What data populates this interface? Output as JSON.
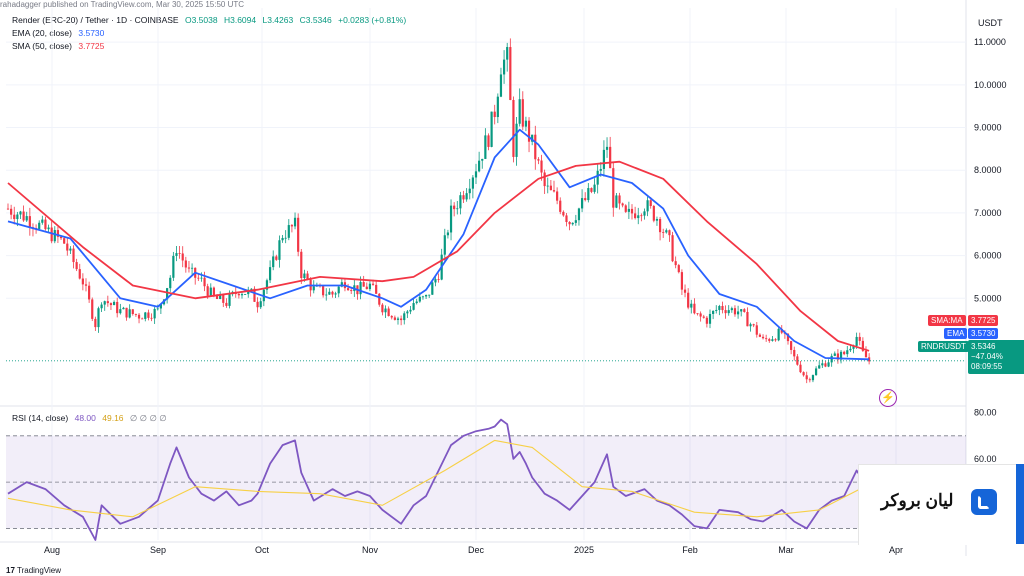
{
  "header": {
    "published": "rahadagger published on TradingView.com, Mar 30, 2025 15:50 UTC",
    "symbol_line": "Render (ERC-20) / Tether · 1D · COINBASE",
    "ohlc": {
      "o": "O3.5038",
      "h": "H3.6094",
      "l": "L3.4263",
      "c": "C3.5346",
      "chg": "+0.0283 (+0.81%)"
    },
    "ema_label": "EMA (20, close)",
    "ema_value": "3.5730",
    "sma_label": "SMA (50, close)",
    "sma_value": "3.7725",
    "currency": "USDT"
  },
  "price_tags": {
    "sma_name": "SMA:MA",
    "sma_value": "3.7725",
    "ema_name": "EMA",
    "ema_value": "3.5730",
    "symbol": "RNDRUSDT",
    "last": "3.5346",
    "change": "−47.04%",
    "countdown": "08:09:55"
  },
  "rsi": {
    "label": "RSI (14, close)",
    "value": "48.00",
    "ma_value": "49.16",
    "zeros": "∅ ∅ ∅ ∅"
  },
  "watermark": {
    "brand": "لیان بروکر"
  },
  "footer": {
    "tradingview": "TradingView"
  },
  "colors": {
    "up": "#089981",
    "down": "#f23645",
    "ema": "#2962ff",
    "sma": "#f23645",
    "rsi": "#7e57c2",
    "rsi_ma": "#f7d046"
  },
  "chart_data": [
    {
      "type": "candlestick",
      "title": "Render (ERC-20) / Tether · 1D · COINBASE",
      "y_axis_ticks": [
        5.0,
        6.0,
        7.0,
        8.0,
        9.0,
        10.0,
        11.0
      ],
      "y_tick_labels": [
        "5.0000",
        "6.0000",
        "7.0000",
        "8.0000",
        "9.0000",
        "10.0000",
        "11.0000"
      ],
      "ylim": [
        2.5,
        11.8
      ],
      "x_tick_labels": [
        "Aug",
        "Sep",
        "Oct",
        "Nov",
        "Dec",
        "2025",
        "Feb",
        "Mar",
        "Apr"
      ],
      "close_path": [
        [
          0,
          7.1
        ],
        [
          6,
          6.9
        ],
        [
          12,
          6.6
        ],
        [
          18,
          6.3
        ],
        [
          24,
          5.4
        ],
        [
          28,
          4.4
        ],
        [
          30,
          5.0
        ],
        [
          36,
          4.7
        ],
        [
          42,
          4.6
        ],
        [
          48,
          4.7
        ],
        [
          52,
          5.5
        ],
        [
          54,
          6.2
        ],
        [
          58,
          5.6
        ],
        [
          62,
          5.4
        ],
        [
          66,
          5.0
        ],
        [
          70,
          4.9
        ],
        [
          74,
          5.2
        ],
        [
          78,
          5.1
        ],
        [
          80,
          4.9
        ],
        [
          84,
          5.6
        ],
        [
          88,
          6.5
        ],
        [
          92,
          6.7
        ],
        [
          94,
          5.6
        ],
        [
          98,
          5.2
        ],
        [
          104,
          5.1
        ],
        [
          108,
          5.4
        ],
        [
          112,
          5.2
        ],
        [
          116,
          5.3
        ],
        [
          120,
          4.8
        ],
        [
          126,
          4.5
        ],
        [
          130,
          4.9
        ],
        [
          134,
          5.0
        ],
        [
          138,
          5.6
        ],
        [
          142,
          7.0
        ],
        [
          146,
          7.5
        ],
        [
          150,
          8.1
        ],
        [
          154,
          8.8
        ],
        [
          156,
          9.4
        ],
        [
          158,
          10.5
        ],
        [
          160,
          10.6
        ],
        [
          162,
          8.5
        ],
        [
          164,
          9.4
        ],
        [
          166,
          9.0
        ],
        [
          168,
          8.6
        ],
        [
          172,
          7.6
        ],
        [
          176,
          7.3
        ],
        [
          180,
          6.8
        ],
        [
          184,
          7.2
        ],
        [
          188,
          7.6
        ],
        [
          192,
          8.6
        ],
        [
          194,
          7.3
        ],
        [
          198,
          6.9
        ],
        [
          204,
          7.2
        ],
        [
          208,
          6.9
        ],
        [
          212,
          6.3
        ],
        [
          216,
          5.2
        ],
        [
          220,
          4.6
        ],
        [
          224,
          4.5
        ],
        [
          228,
          4.8
        ],
        [
          234,
          4.7
        ],
        [
          238,
          4.4
        ],
        [
          242,
          4.0
        ],
        [
          248,
          4.2
        ],
        [
          252,
          3.6
        ],
        [
          256,
          3.1
        ],
        [
          260,
          3.4
        ],
        [
          264,
          3.6
        ],
        [
          268,
          3.7
        ],
        [
          272,
          4.1
        ],
        [
          274,
          3.7
        ],
        [
          276,
          3.53
        ]
      ],
      "series": [
        {
          "name": "EMA (20, close)",
          "values": [
            [
              0,
              6.8
            ],
            [
              20,
              6.4
            ],
            [
              36,
              5.0
            ],
            [
              48,
              4.8
            ],
            [
              60,
              5.6
            ],
            [
              72,
              5.3
            ],
            [
              84,
              5.0
            ],
            [
              96,
              5.3
            ],
            [
              108,
              5.3
            ],
            [
              120,
              5.0
            ],
            [
              126,
              4.8
            ],
            [
              134,
              5.2
            ],
            [
              146,
              6.5
            ],
            [
              156,
              8.3
            ],
            [
              164,
              8.95
            ],
            [
              170,
              8.6
            ],
            [
              180,
              7.6
            ],
            [
              190,
              7.9
            ],
            [
              200,
              7.7
            ],
            [
              210,
              7.1
            ],
            [
              218,
              6.0
            ],
            [
              228,
              5.1
            ],
            [
              240,
              4.8
            ],
            [
              252,
              4.0
            ],
            [
              262,
              3.6
            ],
            [
              276,
              3.57
            ]
          ]
        },
        {
          "name": "SMA (50, close)",
          "values": [
            [
              0,
              7.7
            ],
            [
              24,
              6.2
            ],
            [
              40,
              5.3
            ],
            [
              60,
              5.0
            ],
            [
              80,
              5.2
            ],
            [
              100,
              5.5
            ],
            [
              120,
              5.4
            ],
            [
              130,
              5.5
            ],
            [
              144,
              6.1
            ],
            [
              156,
              7.0
            ],
            [
              170,
              7.8
            ],
            [
              182,
              8.1
            ],
            [
              196,
              8.2
            ],
            [
              210,
              7.8
            ],
            [
              224,
              6.8
            ],
            [
              240,
              5.8
            ],
            [
              254,
              4.7
            ],
            [
              266,
              4.0
            ],
            [
              276,
              3.77
            ]
          ]
        }
      ]
    },
    {
      "type": "line",
      "title": "RSI (14, close)",
      "y_axis_ticks": [
        60.0,
        80.0
      ],
      "y_tick_labels": [
        "60.00",
        "80.00"
      ],
      "ylim": [
        25,
        82
      ],
      "bands": {
        "upper": 70,
        "middle": 50,
        "lower": 30
      },
      "series": [
        {
          "name": "RSI",
          "values": [
            [
              0,
              45
            ],
            [
              6,
              50
            ],
            [
              12,
              47
            ],
            [
              18,
              40
            ],
            [
              24,
              35
            ],
            [
              28,
              25
            ],
            [
              30,
              40
            ],
            [
              36,
              32
            ],
            [
              42,
              35
            ],
            [
              48,
              42
            ],
            [
              52,
              58
            ],
            [
              54,
              65
            ],
            [
              58,
              52
            ],
            [
              62,
              45
            ],
            [
              66,
              42
            ],
            [
              70,
              46
            ],
            [
              74,
              40
            ],
            [
              78,
              42
            ],
            [
              80,
              45
            ],
            [
              84,
              58
            ],
            [
              88,
              66
            ],
            [
              92,
              68
            ],
            [
              94,
              54
            ],
            [
              98,
              42
            ],
            [
              104,
              47
            ],
            [
              108,
              44
            ],
            [
              112,
              46
            ],
            [
              116,
              44
            ],
            [
              120,
              38
            ],
            [
              126,
              32
            ],
            [
              130,
              40
            ],
            [
              134,
              44
            ],
            [
              138,
              55
            ],
            [
              142,
              66
            ],
            [
              146,
              70
            ],
            [
              150,
              72
            ],
            [
              154,
              73
            ],
            [
              156,
              74
            ],
            [
              158,
              77
            ],
            [
              160,
              75
            ],
            [
              162,
              60
            ],
            [
              164,
              63
            ],
            [
              166,
              58
            ],
            [
              168,
              52
            ],
            [
              172,
              45
            ],
            [
              176,
              42
            ],
            [
              180,
              38
            ],
            [
              184,
              44
            ],
            [
              188,
              50
            ],
            [
              192,
              62
            ],
            [
              194,
              48
            ],
            [
              198,
              44
            ],
            [
              204,
              47
            ],
            [
              208,
              42
            ],
            [
              212,
              40
            ],
            [
              216,
              36
            ],
            [
              220,
              31
            ],
            [
              224,
              30
            ],
            [
              228,
              38
            ],
            [
              234,
              37
            ],
            [
              238,
              34
            ],
            [
              242,
              33
            ],
            [
              248,
              38
            ],
            [
              252,
              33
            ],
            [
              256,
              30
            ],
            [
              260,
              38
            ],
            [
              264,
              42
            ],
            [
              268,
              44
            ],
            [
              272,
              55
            ],
            [
              274,
              51
            ],
            [
              276,
              48
            ]
          ]
        },
        {
          "name": "RSI MA",
          "values": [
            [
              0,
              43
            ],
            [
              20,
              38
            ],
            [
              40,
              35
            ],
            [
              60,
              48
            ],
            [
              80,
              46
            ],
            [
              100,
              45
            ],
            [
              120,
              40
            ],
            [
              140,
              55
            ],
            [
              156,
              68
            ],
            [
              168,
              65
            ],
            [
              184,
              48
            ],
            [
              200,
              46
            ],
            [
              220,
              37
            ],
            [
              240,
              35
            ],
            [
              260,
              38
            ],
            [
              276,
              49
            ]
          ]
        }
      ]
    }
  ]
}
